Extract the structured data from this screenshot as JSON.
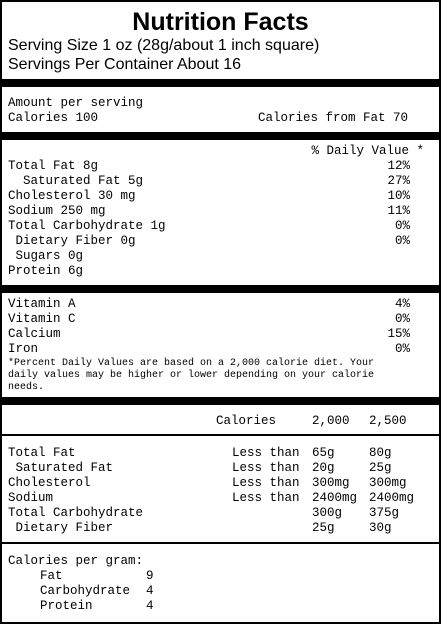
{
  "header": {
    "title": "Nutrition Facts",
    "serving_size": "Serving Size 1 oz (28g/about 1 inch square)",
    "servings_per_container": "Servings Per Container About 16"
  },
  "amount_per_serving": {
    "label": "Amount per serving",
    "calories": "Calories 100",
    "calories_from_fat": "Calories from Fat 70"
  },
  "daily_value_header": "% Daily Value *",
  "nutrients": [
    {
      "name": "Total Fat 8g",
      "dv": "12%"
    },
    {
      "name": "  Saturated Fat 5g",
      "dv": "27%"
    },
    {
      "name": "Cholesterol 30 mg",
      "dv": "10%"
    },
    {
      "name": "Sodium 250 mg",
      "dv": "11%"
    },
    {
      "name": "Total Carbohydrate 1g",
      "dv": "0%"
    },
    {
      "name": " Dietary Fiber 0g",
      "dv": "0%"
    },
    {
      "name": " Sugars 0g",
      "dv": ""
    },
    {
      "name": "Protein 6g",
      "dv": ""
    }
  ],
  "vitamins": [
    {
      "name": "Vitamin A",
      "dv": "4%"
    },
    {
      "name": "Vitamin C",
      "dv": "0%"
    },
    {
      "name": "Calcium",
      "dv": "15%"
    },
    {
      "name": "Iron",
      "dv": "0%"
    }
  ],
  "footnote": "*Percent Daily Values are based on a 2,000 calorie diet.  Your daily values may be higher or lower depending on your calorie needs.",
  "reference": {
    "calories_label": "Calories",
    "col1": "2,000",
    "col2": "2,500",
    "rows": [
      {
        "name": "Total Fat",
        "limit": "Less than",
        "v1": "65g",
        "v2": "80g"
      },
      {
        "name": " Saturated Fat",
        "limit": "Less than",
        "v1": "20g",
        "v2": "25g"
      },
      {
        "name": "Cholesterol",
        "limit": "Less than",
        "v1": "300mg",
        "v2": "300mg"
      },
      {
        "name": "Sodium",
        "limit": "Less than",
        "v1": "2400mg",
        "v2": "2400mg"
      },
      {
        "name": "Total Carbohydrate",
        "limit": "",
        "v1": "300g",
        "v2": "375g"
      },
      {
        "name": " Dietary Fiber",
        "limit": "",
        "v1": "25g",
        "v2": "30g"
      }
    ]
  },
  "calories_per_gram": {
    "label": "Calories per gram:",
    "items": [
      {
        "name": "Fat",
        "value": "9"
      },
      {
        "name": "Carbohydrate",
        "value": "4"
      },
      {
        "name": "Protein",
        "value": "4"
      }
    ]
  }
}
